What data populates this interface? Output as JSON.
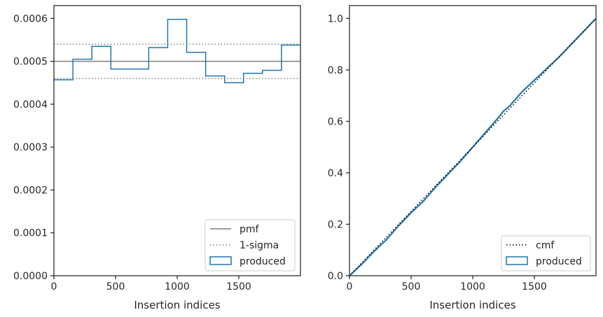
{
  "chart_data": [
    {
      "type": "line",
      "xlabel": "Insertion indices",
      "ylabel": "",
      "xlim": [
        0,
        2000
      ],
      "ylim": [
        0,
        0.00063
      ],
      "xticks": [
        0,
        500,
        1000,
        1500
      ],
      "xtick_labels": [
        "0",
        "500",
        "1000",
        "1500"
      ],
      "yticks": [
        0,
        0.0001,
        0.0002,
        0.0003,
        0.0004,
        0.0005,
        0.0006
      ],
      "ytick_labels": [
        "0.0000",
        "0.0001",
        "0.0002",
        "0.0003",
        "0.0004",
        "0.0005",
        "0.0006"
      ],
      "grid": false,
      "legend": {
        "placement": "bottom-right",
        "entries": [
          {
            "label": "pmf",
            "style": "solid",
            "color": "#808080"
          },
          {
            "label": "1-sigma",
            "style": "dotted",
            "color": "#808080"
          },
          {
            "label": "produced",
            "style": "box",
            "color": "#1f77b4"
          }
        ]
      },
      "pmf": 0.0005,
      "sigma_band": [
        0.00046,
        0.00054
      ],
      "produced_hist": {
        "bin_edges": [
          0,
          154,
          308,
          462,
          615,
          769,
          923,
          1077,
          1231,
          1385,
          1538,
          1692,
          1846,
          2000
        ],
        "values": [
          0.000457,
          0.000505,
          0.000535,
          0.000482,
          0.000482,
          0.000532,
          0.000598,
          0.000521,
          0.000466,
          0.00045,
          0.000472,
          0.000479,
          0.000538
        ]
      },
      "colors": {
        "produced": "#1f77b4",
        "reference": "#808080"
      }
    },
    {
      "type": "line",
      "xlabel": "Insertion indices",
      "ylabel": "",
      "xlim": [
        0,
        2000
      ],
      "ylim": [
        0,
        1.05
      ],
      "xticks": [
        0,
        500,
        1000,
        1500
      ],
      "xtick_labels": [
        "0",
        "500",
        "1000",
        "1500"
      ],
      "yticks": [
        0,
        0.2,
        0.4,
        0.6,
        0.8,
        1.0
      ],
      "ytick_labels": [
        "0.0",
        "0.2",
        "0.4",
        "0.6",
        "0.8",
        "1.0"
      ],
      "grid": false,
      "legend": {
        "placement": "bottom-right",
        "entries": [
          {
            "label": "cmf",
            "style": "dotted",
            "color": "#000000"
          },
          {
            "label": "produced",
            "style": "box",
            "color": "#1f77b4"
          }
        ]
      },
      "cmf": {
        "x": [
          0,
          2000
        ],
        "y": [
          0,
          1.0
        ]
      },
      "produced_cdf": {
        "x": [
          0,
          100,
          200,
          300,
          400,
          500,
          600,
          700,
          800,
          900,
          1000,
          1100,
          1200,
          1250,
          1300,
          1400,
          1500,
          1600,
          1700,
          1800,
          1900,
          2000
        ],
        "y": [
          0,
          0.045,
          0.095,
          0.14,
          0.195,
          0.245,
          0.29,
          0.345,
          0.395,
          0.445,
          0.5,
          0.555,
          0.61,
          0.64,
          0.66,
          0.715,
          0.76,
          0.805,
          0.85,
          0.9,
          0.95,
          1.0
        ]
      },
      "colors": {
        "produced": "#1f77b4",
        "reference": "#000000"
      }
    }
  ]
}
